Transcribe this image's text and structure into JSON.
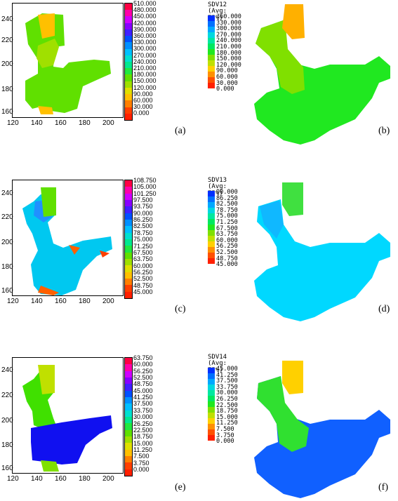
{
  "captions": [
    "(a)",
    "(b)",
    "(c)",
    "(d)",
    "(e)",
    "(f)"
  ],
  "x_ticks": [
    "120",
    "140",
    "160",
    "180",
    "200"
  ],
  "y_ticks": [
    "240",
    "220",
    "200",
    "180",
    "160"
  ],
  "panel_a": {
    "legend_labels": [
      "510.000",
      "480.000",
      "450.000",
      "420.000",
      "390.000",
      "360.000",
      "330.000",
      "300.000",
      "270.000",
      "240.000",
      "210.000",
      "180.000",
      "150.000",
      "120.000",
      "90.000",
      "60.000",
      "30.000",
      "0.000"
    ]
  },
  "panel_b": {
    "title_line1": "SDV12",
    "title_line2": "(Avg: 75%)",
    "legend_labels": [
      "360.000",
      "330.000",
      "300.000",
      "270.000",
      "240.000",
      "210.000",
      "180.000",
      "150.000",
      "120.000",
      "90.000",
      "60.000",
      "30.000",
      "0.000"
    ]
  },
  "panel_c": {
    "legend_labels": [
      "108.750",
      "105.000",
      "101.250",
      "97.500",
      "93.750",
      "90.000",
      "86.250",
      "82.500",
      "78.750",
      "75.000",
      "71.250",
      "67.500",
      "63.750",
      "60.000",
      "56.250",
      "52.500",
      "48.750",
      "45.000"
    ]
  },
  "panel_d": {
    "title_line1": "SDV13",
    "title_line2": "(Avg: 75%)",
    "legend_labels": [
      "90.000",
      "86.250",
      "82.500",
      "78.750",
      "75.000",
      "71.250",
      "67.500",
      "63.750",
      "60.000",
      "56.250",
      "52.500",
      "48.750",
      "45.000"
    ]
  },
  "panel_e": {
    "legend_labels": [
      "63.750",
      "60.000",
      "56.250",
      "52.500",
      "48.750",
      "45.000",
      "41.250",
      "37.500",
      "33.750",
      "30.000",
      "26.250",
      "22.500",
      "18.750",
      "15.000",
      "11.250",
      "7.500",
      "3.750",
      "0.000"
    ]
  },
  "panel_f": {
    "title_line1": "SDV14",
    "title_line2": "(Avg: 75%)",
    "legend_labels": [
      "45.000",
      "41.250",
      "37.500",
      "33.750",
      "30.000",
      "26.250",
      "22.500",
      "18.750",
      "15.000",
      "11.250",
      "7.500",
      "3.750",
      "0.000"
    ]
  },
  "colors": {
    "gradient_left": [
      "#ff0044",
      "#ff00aa",
      "#d000ff",
      "#8800ff",
      "#4020ff",
      "#0050ff",
      "#0090ff",
      "#00c0ff",
      "#00e0d0",
      "#00e890",
      "#20e840",
      "#60e000",
      "#a0e000",
      "#e0e000",
      "#ffc000",
      "#ff8000",
      "#ff4000",
      "#ff2000"
    ],
    "gradient_right": [
      "#0030ff",
      "#0070ff",
      "#00a8ff",
      "#00d8e0",
      "#00e8a0",
      "#00e860",
      "#20e820",
      "#80e000",
      "#c0e000",
      "#ffd000",
      "#ff9000",
      "#ff5000",
      "#ff2000"
    ]
  }
}
